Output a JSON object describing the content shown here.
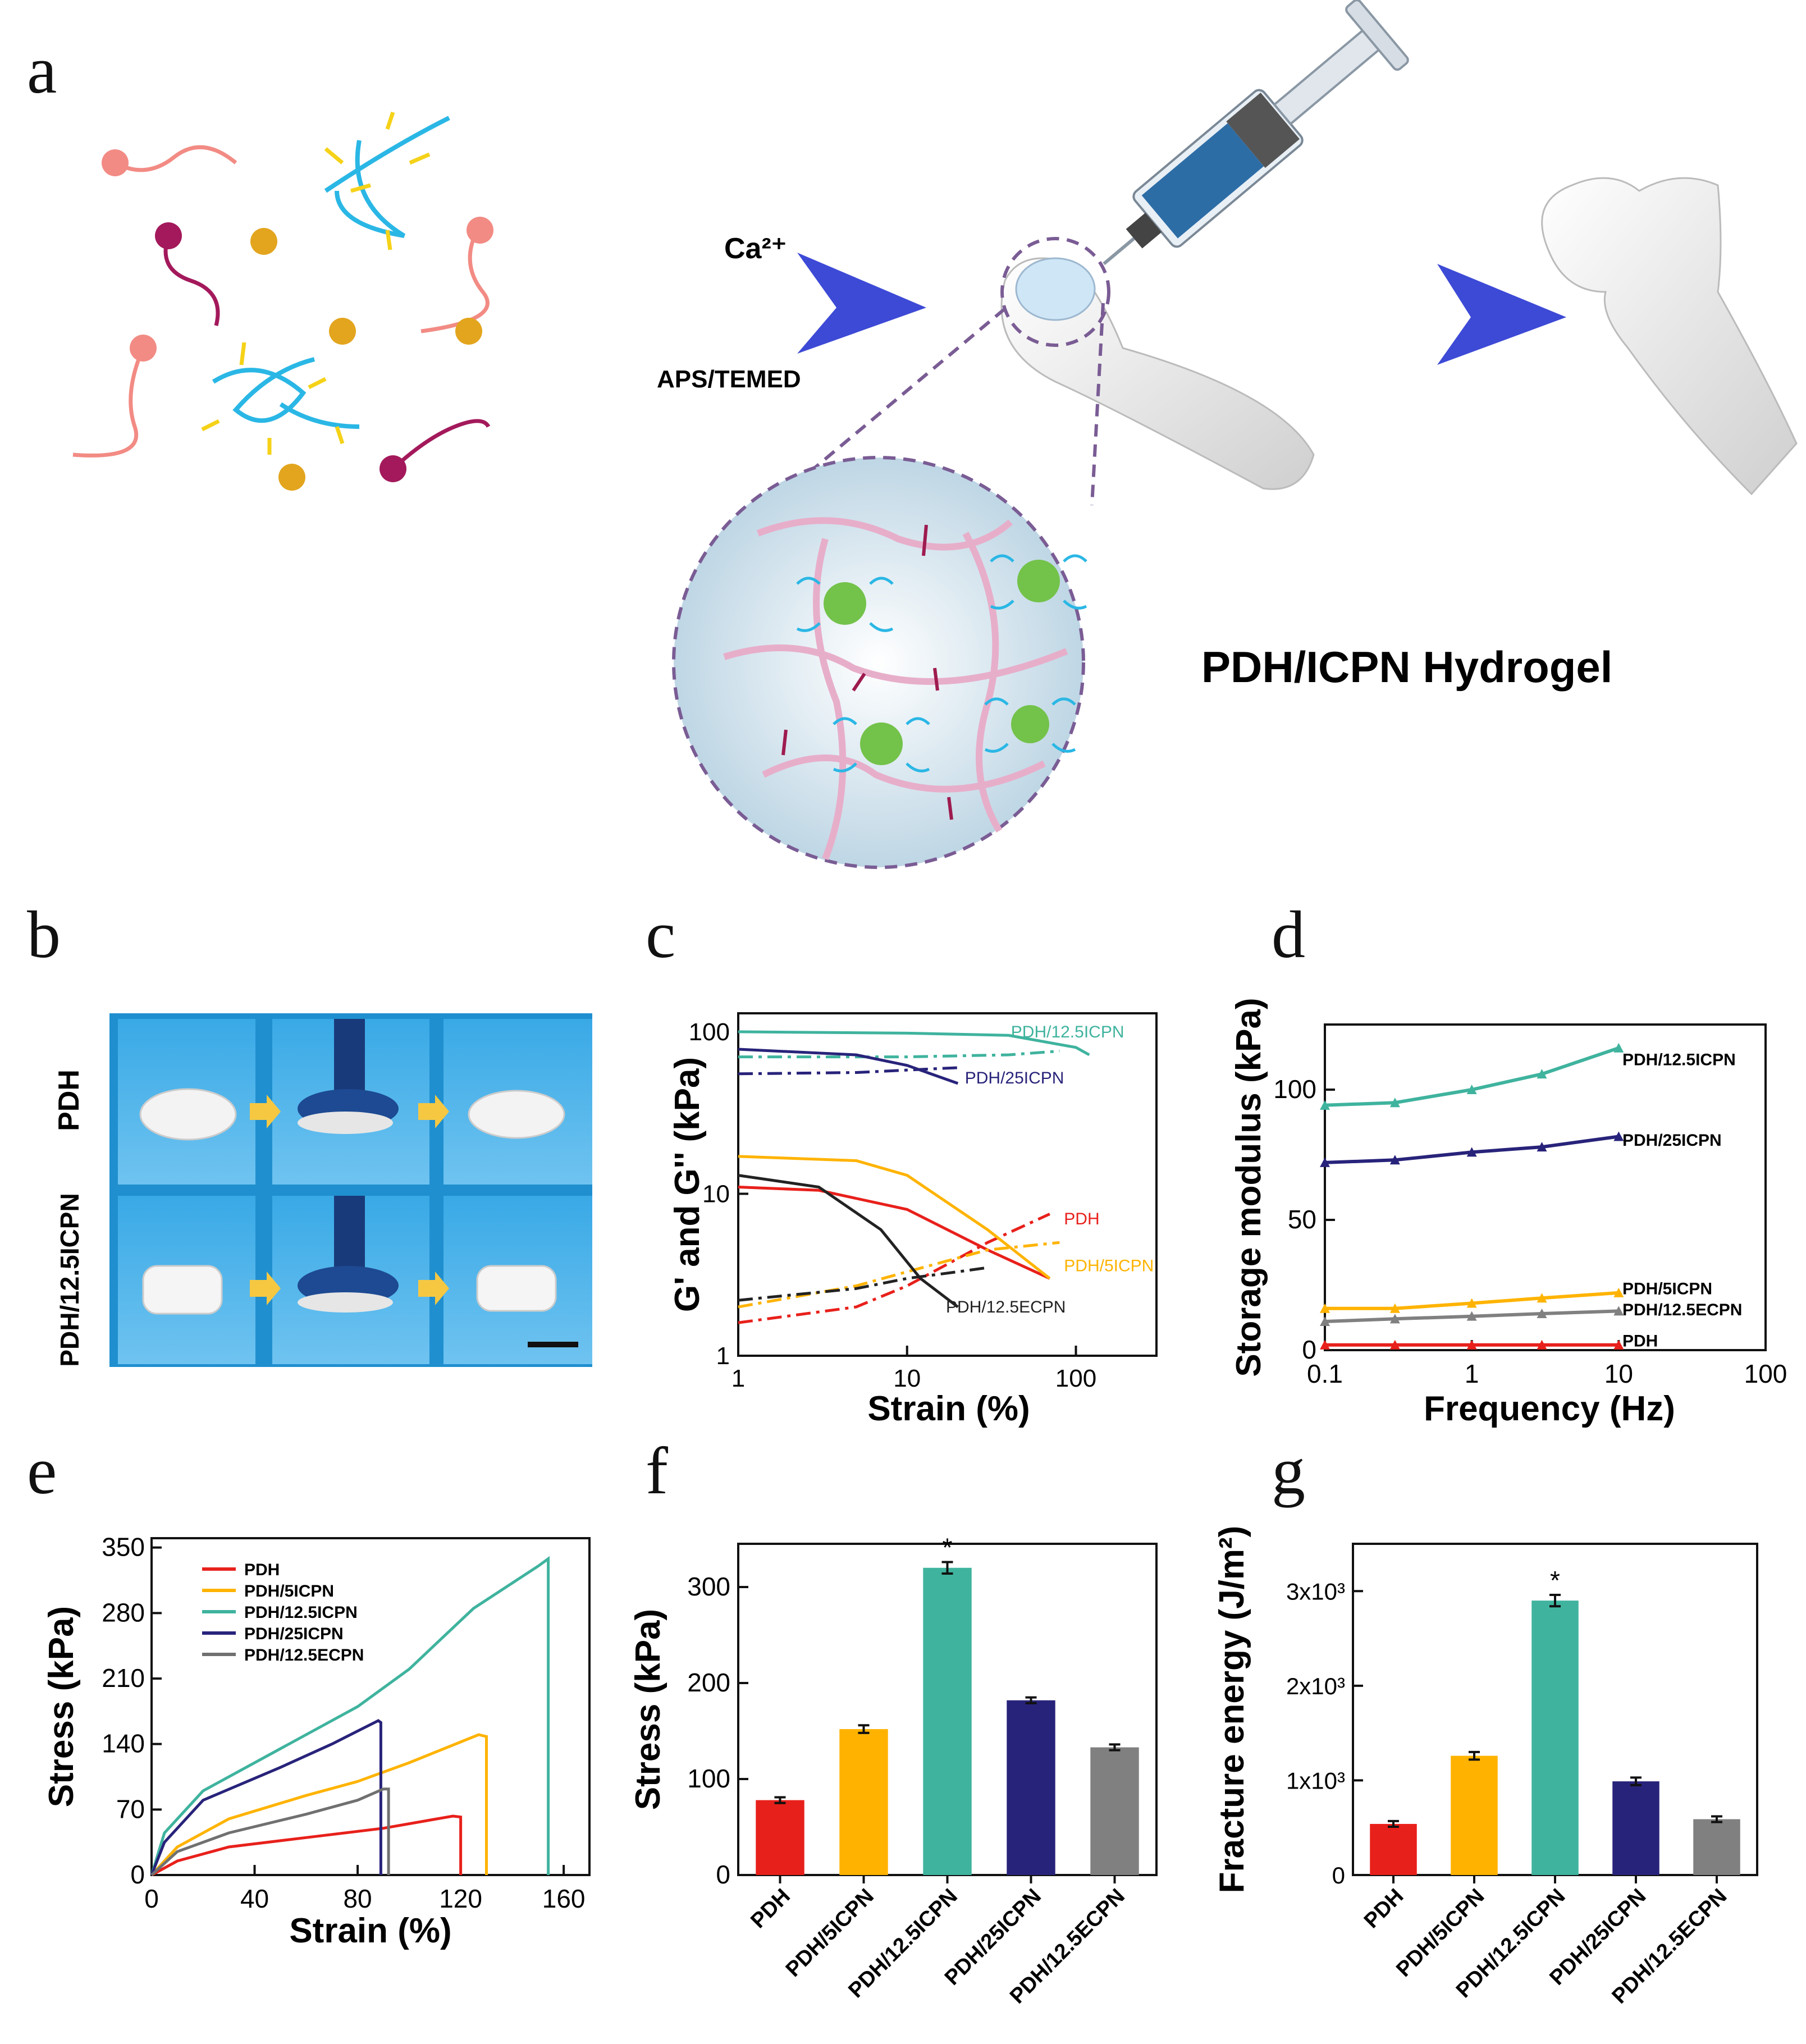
{
  "panel_labels": {
    "a": "a",
    "b": "b",
    "c": "c",
    "d": "d",
    "e": "e",
    "f": "f",
    "g": "g"
  },
  "panel_a": {
    "arrow1_top": "Ca²⁺",
    "arrow1_bottom": "APS/TEMED",
    "hydrogel_title": "PDH/ICPN Hydrogel"
  },
  "panel_b": {
    "row1_label": "PDH",
    "row2_label": "PDH/12.5ICPN"
  },
  "colors": {
    "PDH": "#e8201b",
    "PDH/5ICPN": "#ffb300",
    "PDH/12.5ICPN": "#3fb39e",
    "PDH/25ICPN": "#28237a",
    "PDH/12.5ECPN": "#808080"
  },
  "chart_data": [
    {
      "panel": "c",
      "type": "line",
      "xlabel": "Strain (%)",
      "ylabel": "G' and G'' (kPa)",
      "xscale": "log",
      "yscale": "log",
      "xlim": [
        1,
        300
      ],
      "ylim": [
        1,
        130
      ],
      "xticks": [
        "1",
        "10",
        "100"
      ],
      "yticks": [
        "1",
        "10",
        "100"
      ],
      "series": [
        {
          "name": "PDH/12.5ICPN",
          "kind": "G'",
          "style": "solid",
          "color": "#3fb39e",
          "x": [
            1,
            10,
            40,
            100,
            120
          ],
          "y": [
            100,
            98,
            95,
            80,
            72
          ]
        },
        {
          "name": "PDH/12.5ICPN",
          "kind": "G''",
          "style": "dashdot",
          "color": "#3fb39e",
          "x": [
            1,
            10,
            40,
            80
          ],
          "y": [
            70,
            70,
            72,
            76
          ]
        },
        {
          "name": "PDH/25ICPN",
          "kind": "G'",
          "style": "solid",
          "color": "#28237a",
          "x": [
            1,
            5,
            10,
            20
          ],
          "y": [
            78,
            72,
            62,
            48
          ]
        },
        {
          "name": "PDH/25ICPN",
          "kind": "G''",
          "style": "dashdot",
          "color": "#28237a",
          "x": [
            1,
            5,
            10,
            20
          ],
          "y": [
            55,
            56,
            58,
            60
          ]
        },
        {
          "name": "PDH",
          "kind": "G'",
          "style": "solid",
          "color": "#e8201b",
          "x": [
            1,
            3,
            10,
            30,
            70
          ],
          "y": [
            11,
            10.5,
            8,
            4.5,
            3
          ]
        },
        {
          "name": "PDH",
          "kind": "G''",
          "style": "dashdot",
          "color": "#e8201b",
          "x": [
            1,
            5,
            10,
            30,
            70
          ],
          "y": [
            1.6,
            2,
            2.7,
            5,
            7.5
          ]
        },
        {
          "name": "PDH/5ICPN",
          "kind": "G'",
          "style": "solid",
          "color": "#ffb300",
          "x": [
            1,
            5,
            10,
            30,
            70
          ],
          "y": [
            17,
            16,
            13,
            6,
            3
          ]
        },
        {
          "name": "PDH/5ICPN",
          "kind": "G''",
          "style": "dashdot",
          "color": "#ffb300",
          "x": [
            1,
            5,
            10,
            30,
            80
          ],
          "y": [
            2,
            2.7,
            3.3,
            4.5,
            5
          ]
        },
        {
          "name": "PDH/12.5ECPN",
          "kind": "G'",
          "style": "solid",
          "color": "#222222",
          "x": [
            1,
            3,
            7,
            12,
            20
          ],
          "y": [
            13,
            11,
            6,
            3,
            2
          ]
        },
        {
          "name": "PDH/12.5ECPN",
          "kind": "G''",
          "style": "dashdot",
          "color": "#222222",
          "x": [
            1,
            5,
            10,
            20,
            30
          ],
          "y": [
            2.2,
            2.6,
            3,
            3.3,
            3.5
          ]
        }
      ],
      "annotations": [
        {
          "text": "PDH/12.5ICPN",
          "color": "#3fb39e",
          "x": 130,
          "y": 100
        },
        {
          "text": "PDH/25ICPN",
          "color": "#28237a",
          "x": 22,
          "y": 52
        },
        {
          "text": "PDH",
          "color": "#e8201b",
          "x": 85,
          "y": 7
        },
        {
          "text": "PDH/5ICPN",
          "color": "#ffb300",
          "x": 85,
          "y": 3.6
        },
        {
          "text": "PDH/12.5ECPN",
          "color": "#222222",
          "x": 17,
          "y": 2
        }
      ]
    },
    {
      "panel": "d",
      "type": "line",
      "xlabel": "Frequency (Hz)",
      "ylabel": "Storage modulus  (kPa)",
      "xscale": "log",
      "xlim": [
        0.1,
        100
      ],
      "ylim": [
        0,
        125
      ],
      "xticks": [
        "0.1",
        "1",
        "10",
        "100"
      ],
      "yticks": [
        "0",
        "50",
        "100"
      ],
      "series": [
        {
          "name": "PDH/12.5ICPN",
          "color": "#3fb39e",
          "x": [
            0.1,
            0.3,
            1,
            3,
            10
          ],
          "y": [
            94,
            95,
            100,
            106,
            116
          ]
        },
        {
          "name": "PDH/25ICPN",
          "color": "#28237a",
          "x": [
            0.1,
            0.3,
            1,
            3,
            10
          ],
          "y": [
            72,
            73,
            76,
            78,
            82
          ]
        },
        {
          "name": "PDH/5ICPN",
          "color": "#ffb300",
          "x": [
            0.1,
            0.3,
            1,
            3,
            10
          ],
          "y": [
            16,
            16,
            18,
            20,
            22
          ]
        },
        {
          "name": "PDH/12.5ECPN",
          "color": "#808080",
          "x": [
            0.1,
            0.3,
            1,
            3,
            10
          ],
          "y": [
            11,
            12,
            13,
            14,
            15
          ]
        },
        {
          "name": "PDH",
          "color": "#e8201b",
          "x": [
            0.1,
            0.3,
            1,
            3,
            10
          ],
          "y": [
            2,
            2,
            2,
            2,
            2
          ]
        }
      ],
      "annotations": [
        {
          "text": "PDH/12.5ICPN",
          "y": 112
        },
        {
          "text": "PDH/25ICPN",
          "y": 81
        },
        {
          "text": "PDH/5ICPN",
          "y": 24
        },
        {
          "text": "PDH/12.5ECPN",
          "y": 16
        },
        {
          "text": "PDH",
          "y": 4
        }
      ]
    },
    {
      "panel": "e",
      "type": "line",
      "xlabel": "Strain (%)",
      "ylabel": "Stress (kPa)",
      "xlim": [
        0,
        170
      ],
      "ylim": [
        0,
        360
      ],
      "xticks": [
        "0",
        "40",
        "80",
        "120",
        "160"
      ],
      "yticks": [
        "0",
        "70",
        "140",
        "210",
        "280",
        "350"
      ],
      "legend": [
        "PDH",
        "PDH/5ICPN",
        "PDH/12.5ICPN",
        "PDH/25ICPN",
        "PDH/12.5ECPN"
      ],
      "series": [
        {
          "name": "PDH",
          "color": "#e8201b",
          "x": [
            0,
            10,
            30,
            60,
            90,
            117,
            120,
            120
          ],
          "y": [
            0,
            15,
            30,
            40,
            50,
            63,
            62,
            0
          ]
        },
        {
          "name": "PDH/5ICPN",
          "color": "#ffb300",
          "x": [
            0,
            10,
            30,
            60,
            80,
            100,
            127,
            130,
            130
          ],
          "y": [
            0,
            30,
            60,
            85,
            100,
            120,
            150,
            148,
            0
          ]
        },
        {
          "name": "PDH/12.5ICPN",
          "color": "#3fb39e",
          "x": [
            0,
            5,
            20,
            50,
            80,
            100,
            125,
            150,
            154,
            154
          ],
          "y": [
            0,
            45,
            90,
            135,
            180,
            220,
            285,
            330,
            338,
            0
          ]
        },
        {
          "name": "PDH/25ICPN",
          "color": "#28237a",
          "x": [
            0,
            5,
            20,
            50,
            70,
            88,
            89,
            89
          ],
          "y": [
            0,
            35,
            80,
            115,
            140,
            165,
            163,
            0
          ]
        },
        {
          "name": "PDH/12.5ECPN",
          "color": "#707070",
          "x": [
            0,
            10,
            30,
            60,
            80,
            90,
            92,
            92
          ],
          "y": [
            0,
            25,
            45,
            65,
            80,
            92,
            92,
            0
          ]
        }
      ]
    },
    {
      "panel": "f",
      "type": "bar",
      "ylabel": "Stress (kPa)",
      "ylim": [
        0,
        345
      ],
      "yticks": [
        "0",
        "100",
        "200",
        "300"
      ],
      "categories": [
        "PDH",
        "PDH/5ICPN",
        "PDH/12.5ICPN",
        "PDH/25ICPN",
        "PDH/12.5ECPN"
      ],
      "values": [
        78,
        152,
        320,
        182,
        133
      ],
      "errors": [
        3,
        4,
        6,
        3,
        3
      ],
      "significance": [
        null,
        null,
        "*",
        null,
        null
      ]
    },
    {
      "panel": "g",
      "type": "bar",
      "ylabel": "Fracture energy (J/m²)",
      "ylim": [
        0,
        3500
      ],
      "yticks": [
        "0",
        "1x10³",
        "2x10³",
        "3x10³"
      ],
      "categories": [
        "PDH",
        "PDH/5ICPN",
        "PDH/12.5ICPN",
        "PDH/25ICPN",
        "PDH/12.5ECPN"
      ],
      "values": [
        540,
        1260,
        2900,
        990,
        590
      ],
      "errors": [
        30,
        40,
        60,
        40,
        30
      ],
      "significance": [
        null,
        null,
        "*",
        null,
        null
      ]
    }
  ]
}
